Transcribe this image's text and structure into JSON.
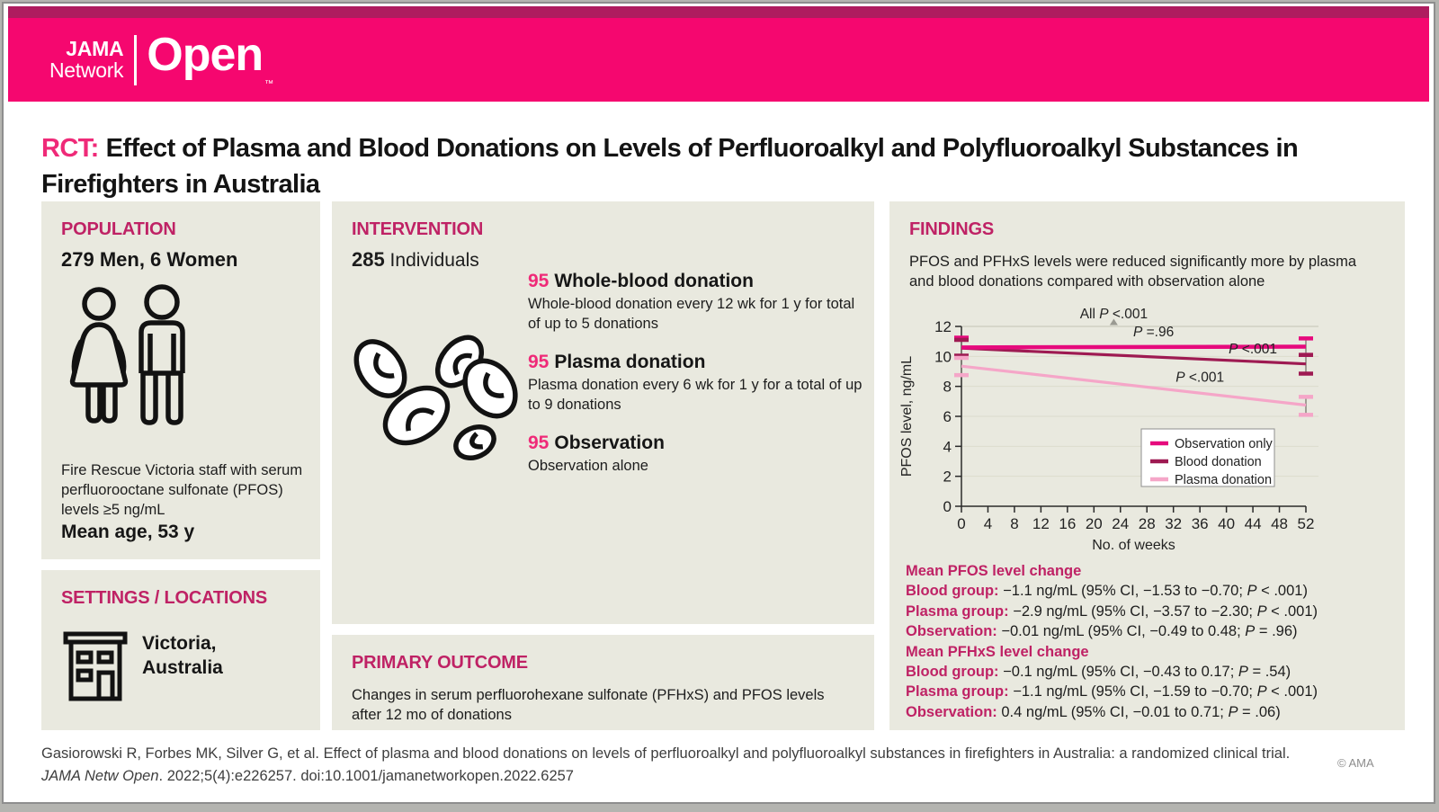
{
  "colors": {
    "band_pink": "#f5076f",
    "band_dark": "#af1c5f",
    "heading_magenta": "#bf2265",
    "accent_pink": "#ef2a78",
    "panel_bg": "#e9e9df",
    "observation_line": "#e60a7d",
    "blood_line": "#9e1a52",
    "plasma_line": "#f5a6c8"
  },
  "header": {
    "brand_line1": "JAMA",
    "brand_line2": "Network",
    "brand_open": "Open",
    "brand_tm": "™"
  },
  "title": {
    "tag": "RCT:",
    "text": "Effect of Plasma and Blood Donations on Levels of Perfluoroalkyl and Polyfluoroalkyl Substances in Firefighters in Australia"
  },
  "population": {
    "heading": "POPULATION",
    "count": "279 Men, 6 Women",
    "description": "Fire Rescue Victoria staff with serum perfluorooctane sulfonate (PFOS) levels ≥5 ng/mL",
    "mean_age": "Mean age, 53 y"
  },
  "settings": {
    "heading": "SETTINGS / LOCATIONS",
    "location": "Victoria,\nAustralia"
  },
  "intervention": {
    "heading": "INTERVENTION",
    "count": "285",
    "count_label": " Individuals",
    "arms": [
      {
        "n": "95",
        "label": "Whole-blood donation",
        "description": "Whole-blood donation every 12 wk for 1 y for total of up to 5 donations"
      },
      {
        "n": "95",
        "label": "Plasma donation",
        "description": "Plasma donation every 6 wk for 1 y for a total of up to 9 donations"
      },
      {
        "n": "95",
        "label": "Observation",
        "description": "Observation alone"
      }
    ]
  },
  "primary_outcome": {
    "heading": "PRIMARY OUTCOME",
    "text": "Changes in serum perfluorohexane sulfonate (PFHxS) and PFOS levels after 12 mo of donations"
  },
  "findings": {
    "heading": "FINDINGS",
    "summary": "PFOS and PFHxS levels were reduced significantly more by plasma and blood donations compared with observation alone",
    "stats": [
      {
        "type": "heading",
        "text": "Mean PFOS level change"
      },
      {
        "type": "stat",
        "label": "Blood group:",
        "value": "−1.1 ng/mL (95% CI, −1.53 to −0.70; P < .001)"
      },
      {
        "type": "stat",
        "label": "Plasma group:",
        "value": "−2.9 ng/mL (95% CI, −3.57 to −2.30; P < .001)"
      },
      {
        "type": "stat",
        "label": "Observation:",
        "value": "−0.01 ng/mL (95% CI, −0.49 to 0.48; P = .96)"
      },
      {
        "type": "heading",
        "text": "Mean PFHxS level change"
      },
      {
        "type": "stat",
        "label": "Blood group:",
        "value": "−0.1 ng/mL (95% CI, −0.43 to 0.17; P = .54)"
      },
      {
        "type": "stat",
        "label": "Plasma group:",
        "value": "−1.1 ng/mL (95% CI, −1.59 to −0.70; P < .001)"
      },
      {
        "type": "stat",
        "label": "Observation:",
        "value": "0.4 ng/mL (95% CI, −0.01 to 0.71; P = .06)"
      }
    ]
  },
  "chart_data": {
    "type": "line",
    "xlabel": "No. of weeks",
    "ylabel": "PFOS level, ng/mL",
    "xlim": [
      0,
      52
    ],
    "ylim": [
      0,
      12
    ],
    "xticks": [
      0,
      4,
      8,
      12,
      16,
      20,
      24,
      28,
      32,
      36,
      40,
      44,
      48,
      52
    ],
    "yticks": [
      0,
      2,
      4,
      6,
      8,
      10,
      12
    ],
    "grid": true,
    "series": [
      {
        "name": "Observation only",
        "color": "#e60a7d",
        "width": 4.5,
        "x": [
          0,
          52
        ],
        "y": [
          10.6,
          10.65
        ],
        "ci_low": [
          10.0,
          10.1
        ],
        "ci_high": [
          11.25,
          11.2
        ]
      },
      {
        "name": "Blood donation",
        "color": "#9e1a52",
        "width": 3.2,
        "x": [
          0,
          52
        ],
        "y": [
          10.55,
          9.5
        ],
        "ci_low": [
          10.05,
          8.85
        ],
        "ci_high": [
          11.1,
          10.1
        ]
      },
      {
        "name": "Plasma donation",
        "color": "#f5a6c8",
        "width": 3.2,
        "x": [
          0,
          52
        ],
        "y": [
          9.35,
          6.75
        ],
        "ci_low": [
          8.75,
          6.1
        ],
        "ci_high": [
          9.9,
          7.3
        ]
      }
    ],
    "annotations": [
      {
        "text": "All P <.001",
        "x": 23,
        "y": 12.55,
        "caret": true
      },
      {
        "text": "P =.96",
        "x": 29,
        "y": 11.35
      },
      {
        "text": "P <.001",
        "x": 44,
        "y": 10.2
      },
      {
        "text": "P <.001",
        "x": 36,
        "y": 8.3
      }
    ],
    "legend": {
      "position": "inside-right",
      "entries": [
        "Observation only",
        "Blood donation",
        "Plasma donation"
      ]
    }
  },
  "footer": {
    "citation_normal1": "Gasiorowski R, Forbes MK, Silver G, et al. Effect of plasma and blood donations on levels of perfluoroalkyl and polyfluoroalkyl substances in firefighters in Australia: a randomized clinical trial. ",
    "citation_italic": "JAMA Netw Open",
    "citation_normal2": ". 2022;5(4):e226257. doi:10.1001/jamanetworkopen.2022.6257",
    "copyright": "© AMA"
  }
}
